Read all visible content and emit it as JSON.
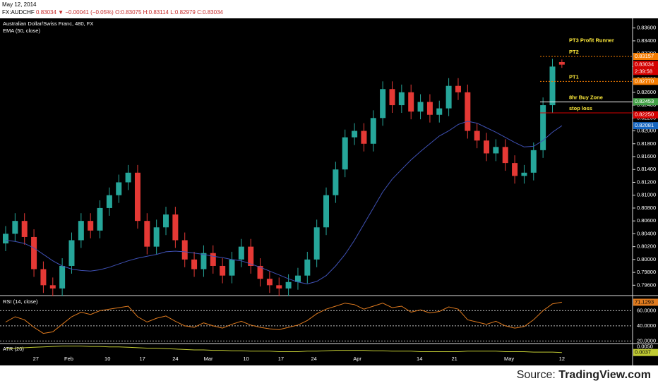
{
  "header": {
    "date": "May 12, 2014",
    "symbol": "FX:AUDCHF",
    "last": "0.83034",
    "arrow": "▼",
    "change": "−0.00041 (−0.05%)",
    "ohlc": [
      "O:0.83075",
      "H:0.83114",
      "L:0.82979",
      "C:0.83034"
    ]
  },
  "footer": {
    "source_label": "Source:",
    "source_name": "TradingView.com"
  },
  "chart_data": [
    {
      "type": "candlestick",
      "title": "Australian Dollar/Swiss Franc, 480, FX",
      "ylim": [
        0.7945,
        0.8375
      ],
      "yticks": [
        {
          "value": 0.796,
          "label": "0.79600"
        },
        {
          "value": 0.798,
          "label": "0.79800"
        },
        {
          "value": 0.8,
          "label": "0.80000"
        },
        {
          "value": 0.802,
          "label": "0.80200"
        },
        {
          "value": 0.804,
          "label": "0.80400"
        },
        {
          "value": 0.806,
          "label": "0.80600"
        },
        {
          "value": 0.808,
          "label": "0.80800"
        },
        {
          "value": 0.81,
          "label": "0.81000"
        },
        {
          "value": 0.812,
          "label": "0.81200"
        },
        {
          "value": 0.814,
          "label": "0.81400"
        },
        {
          "value": 0.816,
          "label": "0.81600"
        },
        {
          "value": 0.818,
          "label": "0.81800"
        },
        {
          "value": 0.82,
          "label": "0.82000"
        },
        {
          "value": 0.822,
          "label": "0.82200"
        },
        {
          "value": 0.824,
          "label": "0.82400"
        },
        {
          "value": 0.826,
          "label": "0.82600"
        },
        {
          "value": 0.828,
          "label": "0.82800"
        },
        {
          "value": 0.83,
          "label": "0.83000"
        },
        {
          "value": 0.832,
          "label": "0.83200"
        },
        {
          "value": 0.834,
          "label": "0.83400"
        },
        {
          "value": 0.836,
          "label": "0.83600"
        }
      ],
      "grid": false,
      "xlim": [
        -0.6,
        66.5
      ],
      "xticks": [
        {
          "value": 3.2,
          "label": "27"
        },
        {
          "value": 6.7,
          "label": "Feb"
        },
        {
          "value": 10.8,
          "label": "10"
        },
        {
          "value": 14.5,
          "label": "17"
        },
        {
          "value": 18,
          "label": "24"
        },
        {
          "value": 21.5,
          "label": "Mar"
        },
        {
          "value": 25.5,
          "label": "10"
        },
        {
          "value": 29.2,
          "label": "17"
        },
        {
          "value": 32.7,
          "label": "24"
        },
        {
          "value": 37.3,
          "label": "Apr"
        },
        {
          "value": 43.9,
          "label": "14"
        },
        {
          "value": 47.6,
          "label": "21"
        },
        {
          "value": 53.4,
          "label": "May"
        },
        {
          "value": 59,
          "label": "12"
        }
      ],
      "up_color": "#26a69a",
      "down_color": "#e53935",
      "series": [
        {
          "kind": "ohlc",
          "values": [
            [
              0.8025,
              0.8052,
              0.8013,
              0.804
            ],
            [
              0.804,
              0.8072,
              0.8028,
              0.806
            ],
            [
              0.806,
              0.8072,
              0.8023,
              0.8035
            ],
            [
              0.8035,
              0.8047,
              0.7973,
              0.7985
            ],
            [
              0.7985,
              0.7997,
              0.7948,
              0.796
            ],
            [
              0.796,
              0.7972,
              0.7943,
              0.7955
            ],
            [
              0.7955,
              0.8002,
              0.7943,
              0.799
            ],
            [
              0.799,
              0.8042,
              0.7978,
              0.803
            ],
            [
              0.803,
              0.8072,
              0.8018,
              0.806
            ],
            [
              0.806,
              0.8072,
              0.8033,
              0.8045
            ],
            [
              0.8045,
              0.8092,
              0.8033,
              0.808
            ],
            [
              0.808,
              0.8112,
              0.8068,
              0.81
            ],
            [
              0.81,
              0.8132,
              0.8088,
              0.812
            ],
            [
              0.812,
              0.8147,
              0.8108,
              0.8135
            ],
            [
              0.8135,
              0.8147,
              0.8048,
              0.806
            ],
            [
              0.806,
              0.8072,
              0.8008,
              0.802
            ],
            [
              0.802,
              0.8062,
              0.8008,
              0.805
            ],
            [
              0.805,
              0.8082,
              0.8038,
              0.807
            ],
            [
              0.807,
              0.8082,
              0.8018,
              0.803
            ],
            [
              0.803,
              0.8042,
              0.7988,
              0.8
            ],
            [
              0.8,
              0.8012,
              0.7973,
              0.7985
            ],
            [
              0.7985,
              0.8022,
              0.7973,
              0.801
            ],
            [
              0.801,
              0.8022,
              0.7978,
              0.799
            ],
            [
              0.799,
              0.8002,
              0.7963,
              0.7975
            ],
            [
              0.7975,
              0.8012,
              0.7963,
              0.8
            ],
            [
              0.8,
              0.8032,
              0.7988,
              0.802
            ],
            [
              0.802,
              0.8032,
              0.7978,
              0.799
            ],
            [
              0.799,
              0.8002,
              0.7958,
              0.797
            ],
            [
              0.797,
              0.7982,
              0.7948,
              0.796
            ],
            [
              0.796,
              0.7972,
              0.7943,
              0.7955
            ],
            [
              0.7955,
              0.7977,
              0.7943,
              0.7965
            ],
            [
              0.7965,
              0.7987,
              0.7953,
              0.7975
            ],
            [
              0.7975,
              0.8012,
              0.7963,
              0.8
            ],
            [
              0.8,
              0.8062,
              0.7988,
              0.805
            ],
            [
              0.805,
              0.8112,
              0.8038,
              0.81
            ],
            [
              0.81,
              0.8152,
              0.8088,
              0.814
            ],
            [
              0.814,
              0.8202,
              0.8128,
              0.819
            ],
            [
              0.819,
              0.8212,
              0.8178,
              0.82
            ],
            [
              0.82,
              0.8212,
              0.8168,
              0.818
            ],
            [
              0.818,
              0.8232,
              0.8168,
              0.822
            ],
            [
              0.822,
              0.8277,
              0.8208,
              0.8265
            ],
            [
              0.8265,
              0.8277,
              0.8228,
              0.824
            ],
            [
              0.824,
              0.8272,
              0.8228,
              0.826
            ],
            [
              0.826,
              0.8272,
              0.8218,
              0.823
            ],
            [
              0.823,
              0.8257,
              0.8218,
              0.8245
            ],
            [
              0.8245,
              0.8257,
              0.8213,
              0.8225
            ],
            [
              0.8225,
              0.8247,
              0.8213,
              0.8235
            ],
            [
              0.8235,
              0.8282,
              0.8223,
              0.827
            ],
            [
              0.827,
              0.8282,
              0.8248,
              0.826
            ],
            [
              0.826,
              0.8272,
              0.8188,
              0.82
            ],
            [
              0.82,
              0.8212,
              0.8173,
              0.8185
            ],
            [
              0.8185,
              0.8197,
              0.8153,
              0.8165
            ],
            [
              0.8165,
              0.8187,
              0.8153,
              0.8175
            ],
            [
              0.8175,
              0.8187,
              0.8138,
              0.815
            ],
            [
              0.815,
              0.8162,
              0.8118,
              0.813
            ],
            [
              0.813,
              0.8147,
              0.8118,
              0.8135
            ],
            [
              0.8135,
              0.8182,
              0.8123,
              0.817
            ],
            [
              0.817,
              0.8252,
              0.8158,
              0.824
            ],
            [
              0.824,
              0.8312,
              0.8228,
              0.83
            ],
            [
              0.8307,
              0.8311,
              0.8298,
              0.8303
            ]
          ]
        },
        {
          "kind": "line",
          "name": "EMA (50, close)",
          "color": "#3f51b5",
          "values": [
            0.803,
            0.8028,
            0.8025,
            0.8018,
            0.8008,
            0.7998,
            0.799,
            0.7985,
            0.7983,
            0.7982,
            0.7984,
            0.7988,
            0.7993,
            0.7998,
            0.8002,
            0.8005,
            0.8008,
            0.8012,
            0.8013,
            0.8012,
            0.801,
            0.8008,
            0.8005,
            0.8003,
            0.8,
            0.7998,
            0.7993,
            0.7988,
            0.7982,
            0.7976,
            0.797,
            0.7965,
            0.7962,
            0.7966,
            0.7975,
            0.799,
            0.8008,
            0.803,
            0.8055,
            0.808,
            0.8105,
            0.8125,
            0.814,
            0.8155,
            0.8168,
            0.818,
            0.8192,
            0.82,
            0.821,
            0.8215,
            0.8212,
            0.8205,
            0.8198,
            0.819,
            0.8182,
            0.8175,
            0.8176,
            0.8185,
            0.8198,
            0.8208
          ]
        }
      ],
      "price_tags": [
        {
          "value": 0.83157,
          "label": "0.83157",
          "color": "#f57c00"
        },
        {
          "value": 0.83034,
          "label": "0.83034",
          "color": "#d50000"
        },
        {
          "value": 0.8277,
          "label": "0.82770",
          "color": "#f57c00"
        },
        {
          "value": 0.82453,
          "label": "0.82453",
          "color": "#43a047"
        },
        {
          "value": 0.8225,
          "label": "0.82250",
          "color": "#d50000"
        },
        {
          "value": 0.82081,
          "label": "0.82081",
          "color": "#1565c0"
        }
      ],
      "countdown": "2:39:58",
      "annotations": [
        {
          "text": "PT3 Profit Runner",
          "value": 0.8334
        },
        {
          "text": "PT2",
          "value": 0.83157,
          "color": "#f57c00"
        },
        {
          "text": "PT1",
          "value": 0.8277,
          "color": "#f57c00"
        },
        {
          "text": "8hr Buy Zone",
          "value": 0.8245,
          "color": "#ffffff"
        },
        {
          "text": "stop loss",
          "value": 0.8228,
          "color": "#d50000"
        }
      ]
    },
    {
      "type": "line",
      "ylim": [
        17.5,
        79
      ],
      "yticks": [
        {
          "value": 20,
          "label": "20.0000"
        },
        {
          "value": 40,
          "label": "40.0000"
        },
        {
          "value": 60,
          "label": "60.0000"
        }
      ],
      "grid": true,
      "series": [
        {
          "name": "RSI (14, close)",
          "color": "#e07b1f",
          "values": [
            45,
            52,
            48,
            38,
            30,
            32,
            42,
            52,
            58,
            55,
            60,
            62,
            64,
            66,
            52,
            45,
            50,
            53,
            46,
            40,
            38,
            44,
            40,
            37,
            42,
            46,
            41,
            38,
            36,
            35,
            38,
            41,
            47,
            56,
            62,
            66,
            70,
            68,
            62,
            66,
            70,
            64,
            66,
            58,
            61,
            57,
            59,
            65,
            62,
            48,
            45,
            42,
            46,
            40,
            37,
            39,
            48,
            60,
            69,
            71.1293
          ]
        }
      ],
      "last_tag": {
        "value": 71.1293,
        "label": "71.1293",
        "color": "#e07b1f"
      }
    },
    {
      "type": "line",
      "ylim": [
        0.003,
        0.0056
      ],
      "yticks": [
        {
          "value": 0.005,
          "label": "0.0050"
        }
      ],
      "grid": false,
      "series": [
        {
          "name": "ATR (20)",
          "color": "#c0ca33",
          "values": [
            0.0046,
            0.0047,
            0.0048,
            0.0049,
            0.005,
            0.0051,
            0.0052,
            0.0052,
            0.0052,
            0.0051,
            0.0051,
            0.005,
            0.005,
            0.0049,
            0.0048,
            0.0047,
            0.0047,
            0.0046,
            0.0045,
            0.0044,
            0.0043,
            0.0043,
            0.0042,
            0.0042,
            0.0041,
            0.0041,
            0.004,
            0.004,
            0.004,
            0.0039,
            0.0039,
            0.0039,
            0.004,
            0.004,
            0.0041,
            0.0042,
            0.0042,
            0.0042,
            0.0042,
            0.0041,
            0.0041,
            0.004,
            0.004,
            0.004,
            0.0039,
            0.0039,
            0.0039,
            0.0039,
            0.0039,
            0.004,
            0.004,
            0.004,
            0.004,
            0.0039,
            0.0039,
            0.0039,
            0.0038,
            0.0038,
            0.0038,
            0.0037
          ]
        }
      ],
      "last_tag": {
        "value": 0.0037,
        "label": "0.0037",
        "color": "#c0ca33"
      }
    }
  ]
}
